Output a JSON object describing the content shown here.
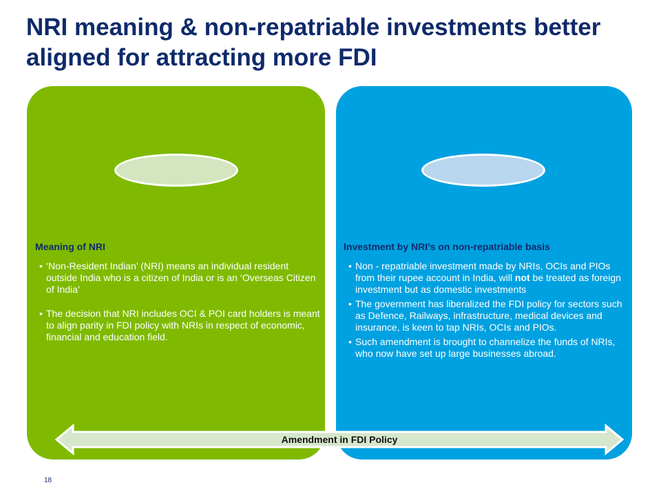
{
  "slide": {
    "title": "NRI meaning & non-repatriable investments better aligned for attracting more FDI",
    "page_number": "18"
  },
  "left_panel": {
    "heading": "Meaning of NRI",
    "bullets": [
      "‘Non-Resident Indian’ (NRI) means an individual resident outside India who is a citizen of India or is an ‘Overseas Citizen of India’",
      "The decision that NRI includes OCI & POI card holders is meant to align parity in FDI policy with NRIs in respect of economic, financial and education field."
    ]
  },
  "right_panel": {
    "heading": "Investment by NRI’s on non-repatriable basis",
    "bullet1_before": "Non - repatriable investment made by NRIs, OCIs and PIOs from their rupee account in India, will ",
    "bullet1_emphasis": "not",
    "bullet1_after": " be treated as foreign investment but  as domestic investments",
    "bullets": [
      "The government has liberalized the FDI policy for sectors such as Defence, Railways, infrastructure, medical devices and insurance, is keen to tap NRIs, OCIs and PIOs.",
      "Such amendment is brought to channelize the funds of NRIs, who now have set up large businesses abroad."
    ]
  },
  "arrow": {
    "label": "Amendment in FDI Policy"
  },
  "colors": {
    "title": "#0f2a6b",
    "left_panel": "#7fba00",
    "right_panel": "#00a1e0",
    "arrow_fill": "#d6e7cc",
    "arrow_stroke": "#ffffff"
  }
}
